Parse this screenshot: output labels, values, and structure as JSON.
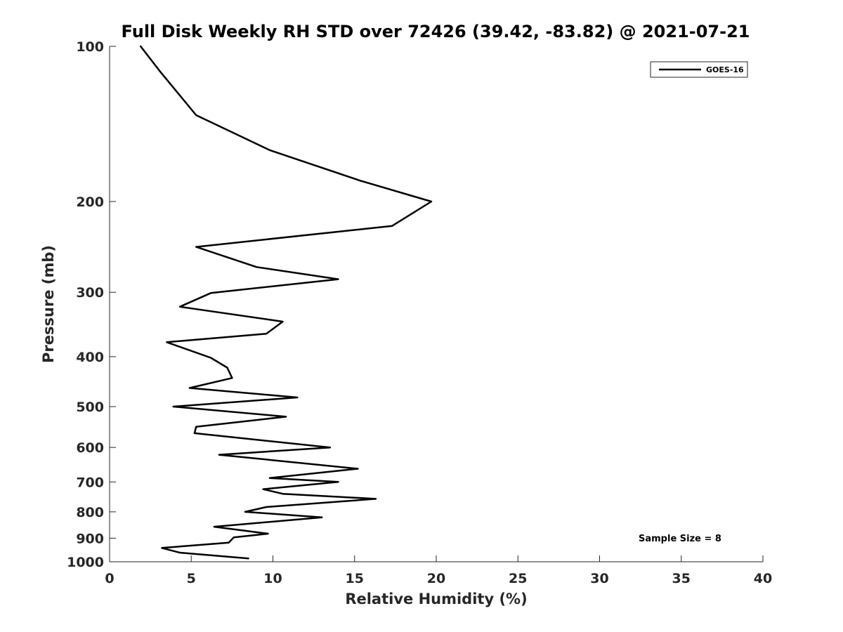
{
  "chart_data": {
    "type": "line",
    "title": "Full Disk Weekly RH STD over 72426 (39.42, -83.82) @ 2021-07-21",
    "xlabel": "Relative Humidity (%)",
    "ylabel": "Pressure (mb)",
    "xlim": [
      0,
      40
    ],
    "ylim": [
      1000,
      100
    ],
    "yscale": "log",
    "y_inverted": true,
    "x_ticks": [
      0,
      5,
      10,
      15,
      20,
      25,
      30,
      35,
      40
    ],
    "y_ticks": [
      100,
      200,
      300,
      400,
      500,
      600,
      700,
      800,
      900,
      1000
    ],
    "grid": false,
    "legend_position": "top-right",
    "series": [
      {
        "name": "GOES-16",
        "color": "#000000",
        "x": [
          1.9,
          3.1,
          5.3,
          9.8,
          15.3,
          19.7,
          17.3,
          5.3,
          9.0,
          14.0,
          6.2,
          4.3,
          10.6,
          9.6,
          3.5,
          6.2,
          7.2,
          7.5,
          4.9,
          11.5,
          3.9,
          10.8,
          5.3,
          5.2,
          13.5,
          6.7,
          15.2,
          9.8,
          14.0,
          9.4,
          10.6,
          16.3,
          9.6,
          8.3,
          13.0,
          6.4,
          9.7,
          7.6,
          7.3,
          3.2,
          4.3,
          8.5
        ],
        "y": [
          100,
          112,
          136,
          159,
          182,
          200,
          223,
          245,
          268,
          283,
          301,
          320,
          342,
          361,
          375,
          402,
          420,
          440,
          460,
          480,
          500,
          523,
          547,
          563,
          600,
          620,
          660,
          688,
          700,
          723,
          738,
          755,
          783,
          800,
          820,
          855,
          882,
          897,
          918,
          940,
          960,
          985
        ]
      }
    ],
    "annotations": [
      {
        "text": "Sample Size = 8",
        "x": 35,
        "y": 900
      }
    ]
  }
}
